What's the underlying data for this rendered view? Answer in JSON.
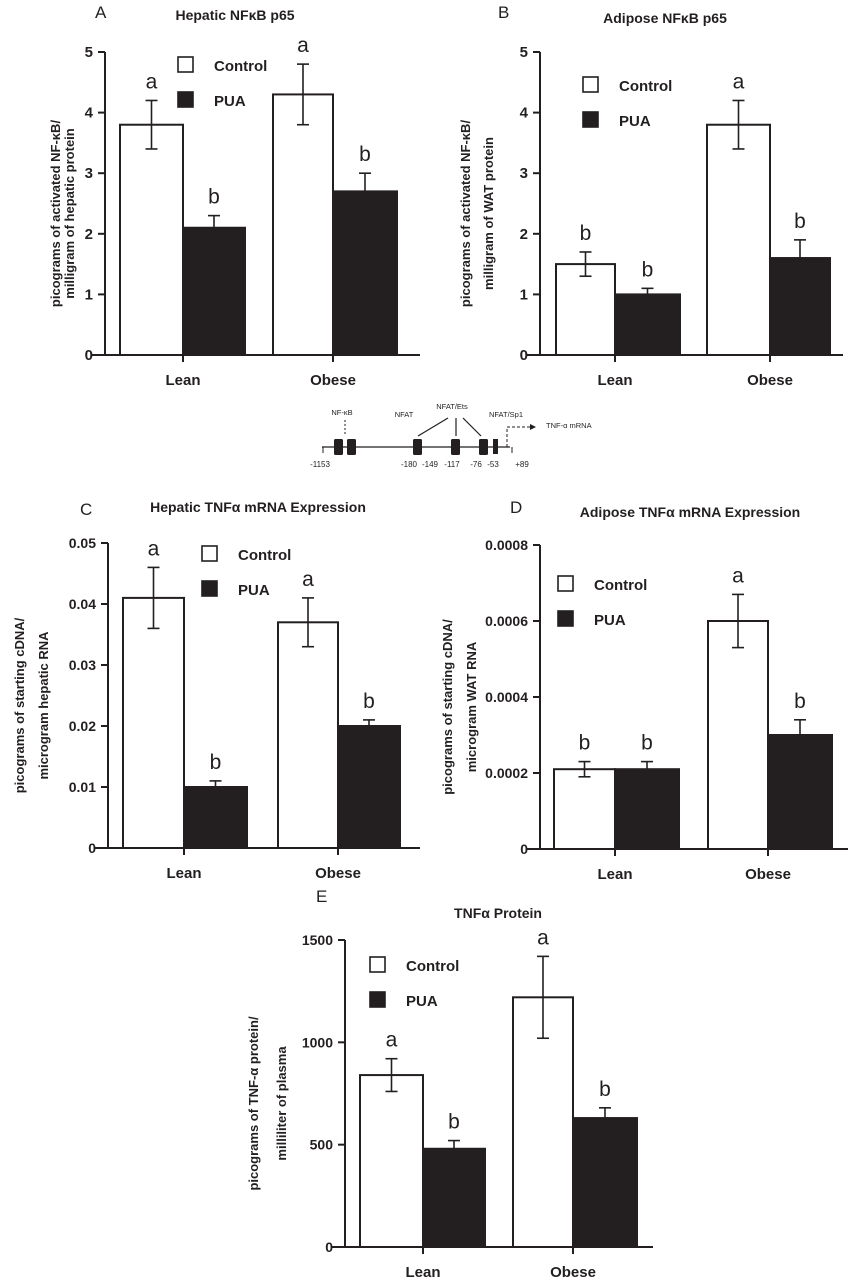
{
  "figure": {
    "panels_letters": [
      "A",
      "B",
      "C",
      "D",
      "E"
    ]
  },
  "legend": {
    "control": "Control",
    "pua": "PUA"
  },
  "colors": {
    "ink": "#231f20",
    "control_fill": "#ffffff",
    "pua_fill": "#231f20",
    "background": "#ffffff"
  },
  "diagram": {
    "sites": [
      "NF-κB",
      "NFAT",
      "NFAT/Ets",
      "NFAT/Sp1"
    ],
    "transcript": "TNF-α mRNA",
    "positions": [
      "-1153",
      "-180",
      "-149",
      "-117",
      "-76",
      "-53",
      "+89"
    ]
  },
  "chart_data": [
    {
      "panel": "A",
      "type": "bar",
      "title": "Hepatic NFκB p65",
      "ylabel": "picograms of activated NF-κB/ milligram of hepatic protein",
      "xlabel": "",
      "categories": [
        "Lean",
        "Obese"
      ],
      "yticks": [
        "0",
        "1",
        "2",
        "3",
        "4",
        "5"
      ],
      "ylim": [
        0,
        5
      ],
      "series": [
        {
          "name": "Control",
          "values": [
            3.8,
            4.3
          ],
          "errors": [
            0.4,
            0.5
          ],
          "letters": [
            "a",
            "a"
          ]
        },
        {
          "name": "PUA",
          "values": [
            2.1,
            2.7
          ],
          "errors": [
            0.2,
            0.3
          ],
          "letters": [
            "b",
            "b"
          ]
        }
      ],
      "legend_position": "top-center"
    },
    {
      "panel": "B",
      "type": "bar",
      "title": "Adipose NFκB p65",
      "ylabel": "picograms of activated NF-κB/ milligram of WAT protein",
      "xlabel": "",
      "categories": [
        "Lean",
        "Obese"
      ],
      "yticks": [
        "0",
        "1",
        "2",
        "3",
        "4",
        "5"
      ],
      "ylim": [
        0,
        5
      ],
      "series": [
        {
          "name": "Control",
          "values": [
            1.5,
            3.8
          ],
          "errors": [
            0.2,
            0.4
          ],
          "letters": [
            "b",
            "a"
          ]
        },
        {
          "name": "PUA",
          "values": [
            1.0,
            1.6
          ],
          "errors": [
            0.1,
            0.3
          ],
          "letters": [
            "b",
            "b"
          ]
        }
      ],
      "legend_position": "top-left"
    },
    {
      "panel": "C",
      "type": "bar",
      "title": "Hepatic TNFα mRNA Expression",
      "ylabel": "picograms of starting cDNA/ microgram hepatic RNA",
      "xlabel": "",
      "categories": [
        "Lean",
        "Obese"
      ],
      "yticks": [
        "0",
        "0.01",
        "0.02",
        "0.03",
        "0.04",
        "0.05"
      ],
      "ylim": [
        0,
        0.05
      ],
      "series": [
        {
          "name": "Control",
          "values": [
            0.041,
            0.037
          ],
          "errors": [
            0.005,
            0.004
          ],
          "letters": [
            "a",
            "a"
          ]
        },
        {
          "name": "PUA",
          "values": [
            0.01,
            0.02
          ],
          "errors": [
            0.001,
            0.001
          ],
          "letters": [
            "b",
            "b"
          ]
        }
      ],
      "legend_position": "top-center"
    },
    {
      "panel": "D",
      "type": "bar",
      "title": "Adipose TNFα mRNA Expression",
      "ylabel": "picograms of starting cDNA/ microgram WAT RNA",
      "xlabel": "",
      "categories": [
        "Lean",
        "Obese"
      ],
      "yticks": [
        "0",
        "0.0002",
        "0.0004",
        "0.0006",
        "0.0008"
      ],
      "ylim": [
        0,
        0.0008
      ],
      "series": [
        {
          "name": "Control",
          "values": [
            0.00021,
            0.0006
          ],
          "errors": [
            2e-05,
            7e-05
          ],
          "letters": [
            "b",
            "a"
          ]
        },
        {
          "name": "PUA",
          "values": [
            0.00021,
            0.0003
          ],
          "errors": [
            2e-05,
            4e-05
          ],
          "letters": [
            "b",
            "b"
          ]
        }
      ],
      "legend_position": "top-left"
    },
    {
      "panel": "E",
      "type": "bar",
      "title": "TNFα Protein",
      "ylabel": "picograms of TNF-α protein/ milliliter of plasma",
      "xlabel": "",
      "categories": [
        "Lean",
        "Obese"
      ],
      "yticks": [
        "0",
        "500",
        "1000",
        "1500"
      ],
      "ylim": [
        0,
        1500
      ],
      "series": [
        {
          "name": "Control",
          "values": [
            840,
            1220
          ],
          "errors": [
            80,
            200
          ],
          "letters": [
            "a",
            "a"
          ]
        },
        {
          "name": "PUA",
          "values": [
            480,
            630
          ],
          "errors": [
            40,
            50
          ],
          "letters": [
            "b",
            "b"
          ]
        }
      ],
      "legend_position": "top-left"
    }
  ]
}
